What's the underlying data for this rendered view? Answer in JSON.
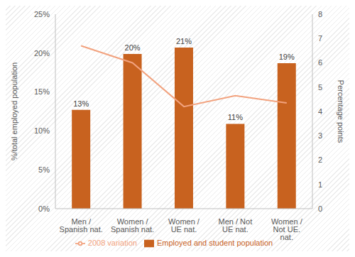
{
  "chart_data": {
    "type": "bar",
    "categories": [
      "Men / Spanish nat.",
      "Women / Spanish nat.",
      "Women / UE nat.",
      "Men / Not UE nat.",
      "Women / Not UE. nat."
    ],
    "series": [
      {
        "name": "Employed and student population",
        "type": "bar",
        "color": "#c8621f",
        "data_labels": true,
        "values": [
          12.7,
          19.9,
          20.7,
          10.9,
          18.7
        ],
        "value_labels": [
          "13%",
          "20%",
          "21%",
          "11%",
          "19%"
        ]
      },
      {
        "name": "2008 variation",
        "type": "line",
        "axis": "y2",
        "color": "#f2a27e",
        "values": [
          6.7,
          6.0,
          4.2,
          4.65,
          4.35
        ]
      }
    ],
    "ylabel": "%/total employed population",
    "y2label": "Percentage points",
    "ylim": [
      0,
      25
    ],
    "yticks": [
      {
        "value": 0,
        "label": "0%"
      },
      {
        "value": 5,
        "label": "5%"
      },
      {
        "value": 10,
        "label": "10%"
      },
      {
        "value": 15,
        "label": "15%"
      },
      {
        "value": 20,
        "label": "20%"
      },
      {
        "value": 25,
        "label": "25%"
      }
    ],
    "y2lim": [
      0,
      8
    ],
    "y2ticks": [
      0,
      1,
      2,
      3,
      4,
      5,
      6,
      7,
      8
    ],
    "grid": false,
    "legend": "bottom"
  }
}
